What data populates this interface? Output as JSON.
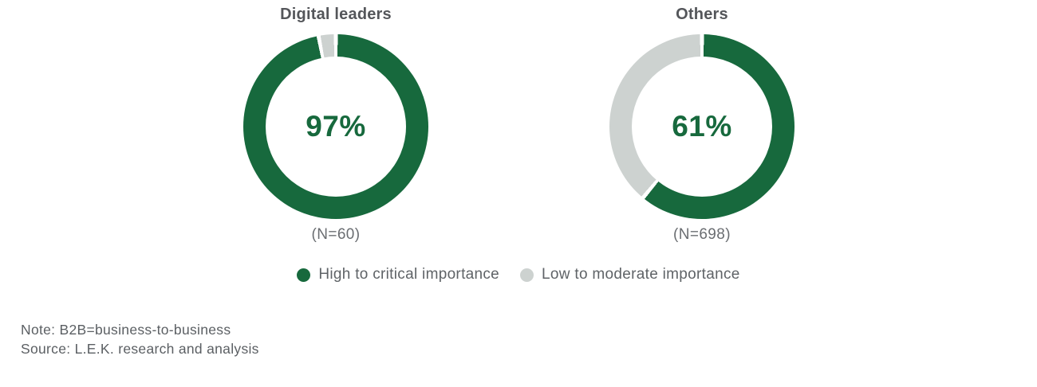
{
  "colors": {
    "green": "#17693d",
    "light_gray": "#cdd2d0",
    "title_text": "#54565a",
    "n_text": "#6a6d71",
    "legend_text": "#5f6367",
    "note_text": "#5b5f63",
    "background": "#ffffff"
  },
  "chart_data": [
    {
      "type": "pie",
      "subtype": "donut",
      "title": "Digital leaders",
      "center_label": "97%",
      "n_label": "(N=60)",
      "series": [
        {
          "name": "High to critical importance",
          "value": 97,
          "color": "#17693d"
        },
        {
          "name": "Low to moderate importance",
          "value": 3,
          "color": "#cdd2d0"
        }
      ]
    },
    {
      "type": "pie",
      "subtype": "donut",
      "title": "Others",
      "center_label": "61%",
      "n_label": "(N=698)",
      "series": [
        {
          "name": "High to critical importance",
          "value": 61,
          "color": "#17693d"
        },
        {
          "name": "Low to moderate importance",
          "value": 39,
          "color": "#cdd2d0"
        }
      ]
    }
  ],
  "legend": {
    "items": [
      {
        "label": "High to critical importance",
        "color": "#17693d"
      },
      {
        "label": "Low to moderate importance",
        "color": "#cdd2d0"
      }
    ]
  },
  "footer": {
    "note": "Note: B2B=business-to-business",
    "source": "Source: L.E.K. research and analysis"
  }
}
